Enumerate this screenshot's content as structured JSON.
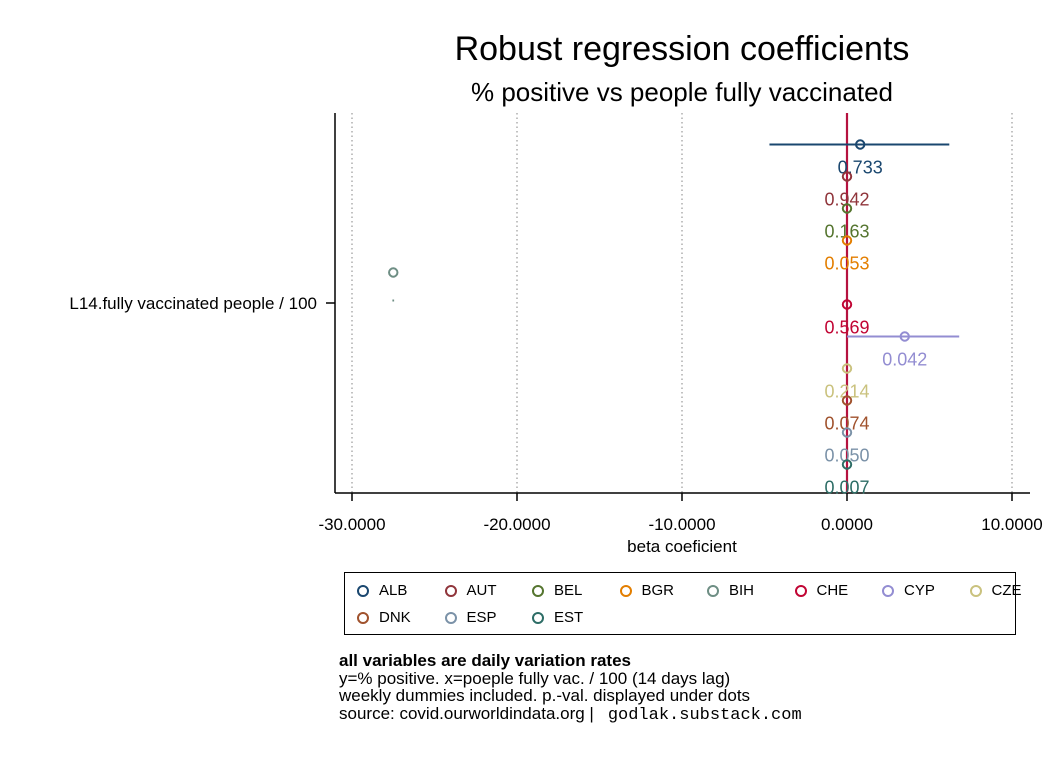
{
  "chart_data": {
    "type": "scatter",
    "title": "Robust regression coefficients",
    "subtitle": "% positive vs people fully vaccinated",
    "xlabel": "beta coeficient",
    "ylabel": "",
    "xlim": [
      -30.0,
      10.0
    ],
    "x_ticks": [
      "-30.0000",
      "-20.0000",
      "-10.0000",
      "0.0000",
      "10.0000"
    ],
    "x_tick_values": [
      -30,
      -20,
      -10,
      0,
      10
    ],
    "y_tick_label": "L14.fully vaccinated people / 100",
    "reference_line_x": 0,
    "grid": "vertical dotted",
    "legend_position": "bottom",
    "series": [
      {
        "name": "ALB",
        "color": "#1a476f",
        "estimate": 0.8,
        "ci": [
          -4.7,
          6.2
        ],
        "pval": "0.733"
      },
      {
        "name": "AUT",
        "color": "#90353b",
        "estimate": 0.0,
        "ci": [
          0.0,
          0.0
        ],
        "pval": "0.942"
      },
      {
        "name": "BEL",
        "color": "#55752f",
        "estimate": 0.0,
        "ci": [
          0.0,
          0.0
        ],
        "pval": "0.163"
      },
      {
        "name": "BGR",
        "color": "#e37e00",
        "estimate": 0.0,
        "ci": [
          0.0,
          0.0
        ],
        "pval": "0.053"
      },
      {
        "name": "BIH",
        "color": "#6e8e84",
        "estimate": -27.5,
        "ci": [
          -27.5,
          -27.5
        ],
        "pval": "."
      },
      {
        "name": "CHE",
        "color": "#c10534",
        "estimate": 0.0,
        "ci": [
          0.0,
          0.0
        ],
        "pval": "0.569"
      },
      {
        "name": "CYP",
        "color": "#938dd2",
        "estimate": 3.5,
        "ci": [
          0.0,
          6.8
        ],
        "pval": "0.042"
      },
      {
        "name": "CZE",
        "color": "#cac27e",
        "estimate": 0.0,
        "ci": [
          0.0,
          0.0
        ],
        "pval": "0.214"
      },
      {
        "name": "DNK",
        "color": "#a0522d",
        "estimate": 0.0,
        "ci": [
          0.0,
          0.0
        ],
        "pval": "0.074"
      },
      {
        "name": "ESP",
        "color": "#7b92a8",
        "estimate": 0.0,
        "ci": [
          0.0,
          0.0
        ],
        "pval": "0.050"
      },
      {
        "name": "EST",
        "color": "#2d6d66",
        "estimate": 0.0,
        "ci": [
          0.0,
          0.0
        ],
        "pval": "0.007"
      }
    ]
  },
  "notes": {
    "line1": "all variables are daily variation rates",
    "line2": "y=% positive. x=poeple fully vac. / 100 (14 days lag)",
    "line3": "weekly dummies included. p.-val. displayed under dots",
    "line4": "source: covid.ourworldindata.org |",
    "line4_mono": "godlak.substack.com"
  },
  "colors": {
    "reference_line": "#b5123f",
    "axis": "#000000",
    "grid": "#999999"
  }
}
